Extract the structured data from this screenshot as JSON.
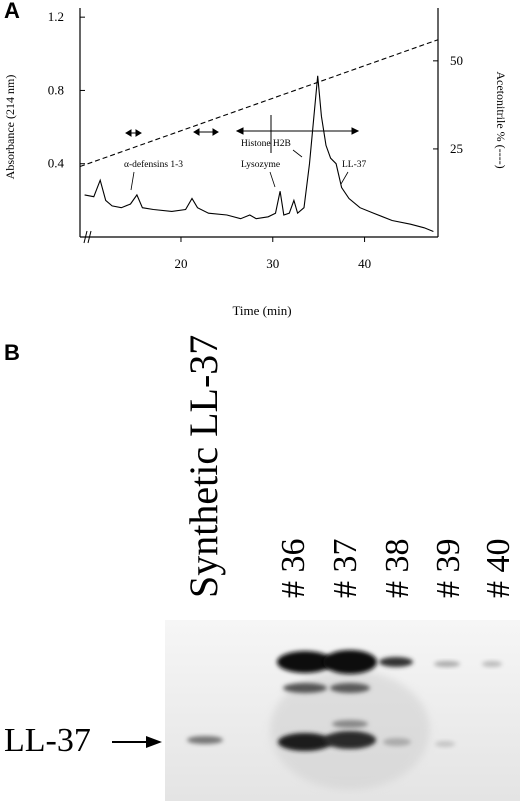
{
  "panels": {
    "a_label": "A",
    "b_label": "B"
  },
  "chart_data": {
    "type": "line",
    "xlabel": "Time (min)",
    "ylabel_left": "Absorbance (214 nm)",
    "ylabel_right": "Acetonitrile % (----)",
    "x_ticks": [
      20,
      30,
      40
    ],
    "y_left_ticks": [
      "0.4",
      "0.8",
      "1.2"
    ],
    "y_right_ticks": [
      "25",
      "50"
    ],
    "xlim": [
      9,
      48
    ],
    "ylim_left": [
      0,
      1.25
    ],
    "ylim_right": [
      0,
      65
    ],
    "series": [
      {
        "values": [
          [
            9.5,
            0.23
          ],
          [
            10.5,
            0.22
          ],
          [
            11.2,
            0.31
          ],
          [
            11.8,
            0.2
          ],
          [
            12.5,
            0.17
          ],
          [
            13.5,
            0.16
          ],
          [
            14.5,
            0.18
          ],
          [
            15.2,
            0.23
          ],
          [
            15.8,
            0.16
          ],
          [
            17,
            0.15
          ],
          [
            19,
            0.14
          ],
          [
            20.5,
            0.15
          ],
          [
            21.2,
            0.21
          ],
          [
            21.8,
            0.16
          ],
          [
            23,
            0.13
          ],
          [
            25,
            0.12
          ],
          [
            26.5,
            0.1
          ],
          [
            27.5,
            0.12
          ],
          [
            28.2,
            0.1
          ],
          [
            29.5,
            0.11
          ],
          [
            30.3,
            0.13
          ],
          [
            30.8,
            0.25
          ],
          [
            31.2,
            0.12
          ],
          [
            31.8,
            0.13
          ],
          [
            32.3,
            0.2
          ],
          [
            32.7,
            0.13
          ],
          [
            33.4,
            0.16
          ],
          [
            34.0,
            0.4
          ],
          [
            34.5,
            0.67
          ],
          [
            34.9,
            0.88
          ],
          [
            35.3,
            0.66
          ],
          [
            35.8,
            0.5
          ],
          [
            36.3,
            0.43
          ],
          [
            36.9,
            0.4
          ],
          [
            37.5,
            0.27
          ],
          [
            38.3,
            0.21
          ],
          [
            39.5,
            0.16
          ],
          [
            41,
            0.13
          ],
          [
            43,
            0.09
          ],
          [
            45,
            0.07
          ],
          [
            46.5,
            0.05
          ],
          [
            47.5,
            0.03
          ]
        ]
      },
      {
        "values": [
          [
            9,
            20
          ],
          [
            48,
            56
          ]
        ]
      }
    ],
    "annotations": [
      "α-defensins 1-3",
      "Lysozyme",
      "Histone H2B",
      "LL-37"
    ]
  },
  "western_blot": {
    "lane_labels": [
      "Synthetic LL-37",
      "# 36",
      "# 37",
      "# 38",
      "# 39",
      "# 40"
    ],
    "band_label": "LL-37"
  }
}
